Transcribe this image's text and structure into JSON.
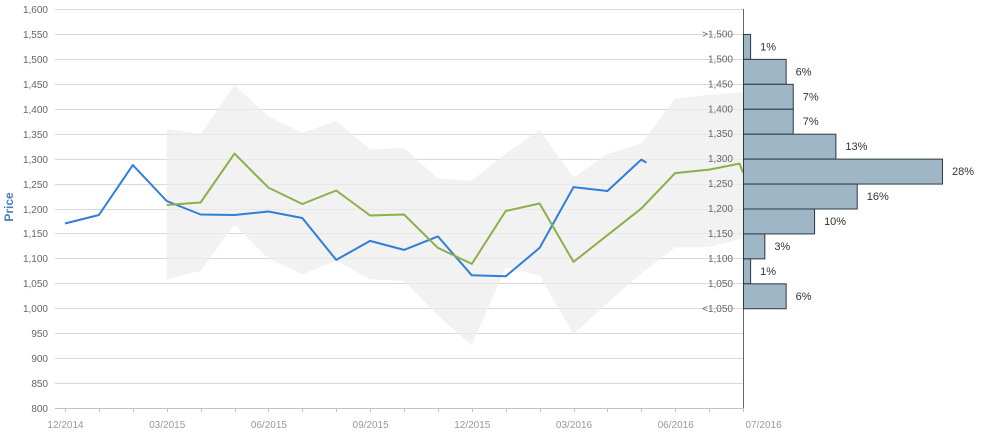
{
  "chart_data": {
    "type": "line",
    "title": "",
    "ylabel": "Price",
    "xlabel": "",
    "ylim": [
      800,
      1600
    ],
    "y_ticks": [
      800,
      850,
      900,
      950,
      1000,
      1050,
      1100,
      1150,
      1200,
      1250,
      1300,
      1350,
      1400,
      1450,
      1500,
      1550,
      1600
    ],
    "y_tick_labels": [
      "800",
      "850",
      "900",
      "950",
      "1,000",
      "1,050",
      "1,100",
      "1,150",
      "1,200",
      "1,250",
      "1,300",
      "1,350",
      "1,400",
      "1,450",
      "1,500",
      "1,550",
      "1,600"
    ],
    "x_tick_labels": [
      {
        "label": "12/2014",
        "month_index": 0
      },
      {
        "label": "03/2015",
        "month_index": 3
      },
      {
        "label": "06/2015",
        "month_index": 6
      },
      {
        "label": "09/2015",
        "month_index": 9
      },
      {
        "label": "12/2015",
        "month_index": 12
      },
      {
        "label": "03/2016",
        "month_index": 15
      },
      {
        "label": "06/2016",
        "month_index": 18
      },
      {
        "label": "07/2016",
        "month_index": 20
      }
    ],
    "grid": true,
    "series": [
      {
        "key": "blue",
        "color": "#2f7ed8",
        "points": [
          [
            0,
            1170
          ],
          [
            1,
            1187
          ],
          [
            2,
            1287
          ],
          [
            3,
            1215
          ],
          [
            4,
            1188
          ],
          [
            5,
            1187
          ],
          [
            6,
            1194
          ],
          [
            7,
            1181
          ],
          [
            8,
            1097
          ],
          [
            9,
            1135
          ],
          [
            10,
            1117
          ],
          [
            11,
            1144
          ],
          [
            12,
            1066
          ],
          [
            13,
            1064
          ],
          [
            14,
            1121
          ],
          [
            15,
            1243
          ],
          [
            16,
            1235
          ],
          [
            17,
            1298
          ],
          [
            17.15,
            1292
          ]
        ]
      },
      {
        "key": "green",
        "color": "#8bb04a",
        "points": [
          [
            3,
            1207
          ],
          [
            4,
            1212
          ],
          [
            5,
            1310
          ],
          [
            6,
            1242
          ],
          [
            7,
            1209
          ],
          [
            8,
            1236
          ],
          [
            9,
            1186
          ],
          [
            10,
            1188
          ],
          [
            11,
            1121
          ],
          [
            12,
            1089
          ],
          [
            13,
            1195
          ],
          [
            14,
            1210
          ],
          [
            15,
            1093
          ],
          [
            17,
            1200
          ],
          [
            18,
            1271
          ],
          [
            19,
            1278
          ],
          [
            19.9,
            1290
          ],
          [
            20,
            1272
          ]
        ]
      }
    ],
    "band": {
      "color": "#eeeeee",
      "upper": [
        [
          3,
          1360
        ],
        [
          4,
          1350
        ],
        [
          5,
          1447
        ],
        [
          6,
          1385
        ],
        [
          7,
          1352
        ],
        [
          8,
          1375
        ],
        [
          9,
          1318
        ],
        [
          10,
          1322
        ],
        [
          11,
          1260
        ],
        [
          12,
          1256
        ],
        [
          13,
          1310
        ],
        [
          14,
          1358
        ],
        [
          15,
          1262
        ],
        [
          16,
          1310
        ],
        [
          17,
          1330
        ],
        [
          18,
          1420
        ],
        [
          19,
          1428
        ],
        [
          20,
          1433
        ]
      ],
      "lower": [
        [
          3,
          1058
        ],
        [
          4,
          1075
        ],
        [
          5,
          1168
        ],
        [
          6,
          1100
        ],
        [
          7,
          1068
        ],
        [
          8,
          1095
        ],
        [
          9,
          1058
        ],
        [
          10,
          1055
        ],
        [
          11,
          985
        ],
        [
          12,
          926
        ],
        [
          13,
          1082
        ],
        [
          14,
          1065
        ],
        [
          15,
          948
        ],
        [
          16,
          1010
        ],
        [
          17,
          1070
        ],
        [
          18,
          1122
        ],
        [
          19,
          1123
        ],
        [
          20,
          1140
        ]
      ]
    },
    "histogram": {
      "color": "#9eb6c6",
      "bins": [
        {
          "label": ">1,500",
          "y_from": 1500,
          "y_to": 1550,
          "percent": 1,
          "percent_label": "1%"
        },
        {
          "label": "1,500",
          "y_from": 1450,
          "y_to": 1500,
          "percent": 6,
          "percent_label": "6%"
        },
        {
          "label": "1,450",
          "y_from": 1400,
          "y_to": 1450,
          "percent": 7,
          "percent_label": "7%"
        },
        {
          "label": "1,400",
          "y_from": 1350,
          "y_to": 1400,
          "percent": 7,
          "percent_label": "7%"
        },
        {
          "label": "1,350",
          "y_from": 1300,
          "y_to": 1350,
          "percent": 13,
          "percent_label": "13%"
        },
        {
          "label": "1,300",
          "y_from": 1250,
          "y_to": 1300,
          "percent": 28,
          "percent_label": "28%"
        },
        {
          "label": "1,250",
          "y_from": 1200,
          "y_to": 1250,
          "percent": 16,
          "percent_label": "16%"
        },
        {
          "label": "1,200",
          "y_from": 1150,
          "y_to": 1200,
          "percent": 10,
          "percent_label": "10%"
        },
        {
          "label": "1,150",
          "y_from": 1100,
          "y_to": 1150,
          "percent": 3,
          "percent_label": "3%"
        },
        {
          "label": "1,100",
          "y_from": 1050,
          "y_to": 1100,
          "percent": 1,
          "percent_label": "1%"
        },
        {
          "label": "1,050",
          "y_from": 1000,
          "y_to": 1050,
          "percent": 6,
          "percent_label": "6%"
        },
        {
          "label": "<1,050",
          "y_from": 1000,
          "y_to": 1000,
          "percent": 0,
          "percent_label": ""
        }
      ]
    }
  }
}
